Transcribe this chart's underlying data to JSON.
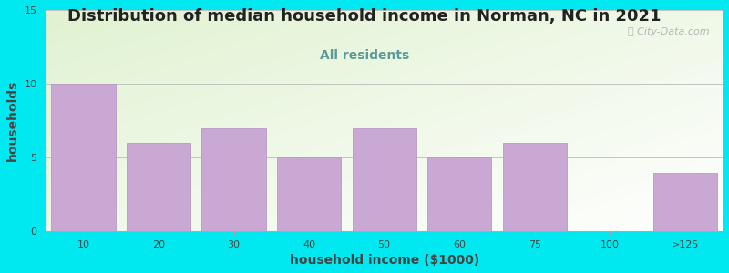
{
  "title": "Distribution of median household income in Norman, NC in 2021",
  "subtitle": "All residents",
  "xlabel": "household income ($1000)",
  "ylabel": "households",
  "bar_labels": [
    "10",
    "20",
    "30",
    "40",
    "50",
    "60",
    "75",
    "100",
    ">125"
  ],
  "bar_values": [
    10,
    6,
    7,
    5,
    7,
    5,
    6,
    0,
    4
  ],
  "bar_color": "#c9a8d4",
  "bar_edgecolor": "#b898c8",
  "ylim": [
    0,
    15
  ],
  "yticks": [
    0,
    5,
    10,
    15
  ],
  "background_outer": "#00e8f0",
  "title_fontsize": 13,
  "subtitle_fontsize": 10,
  "subtitle_color": "#5a9a9a",
  "axis_label_fontsize": 10,
  "tick_fontsize": 8,
  "watermark_text": "ⓘ City-Data.com",
  "watermark_color": "#aaaaaa",
  "title_color": "#222222"
}
